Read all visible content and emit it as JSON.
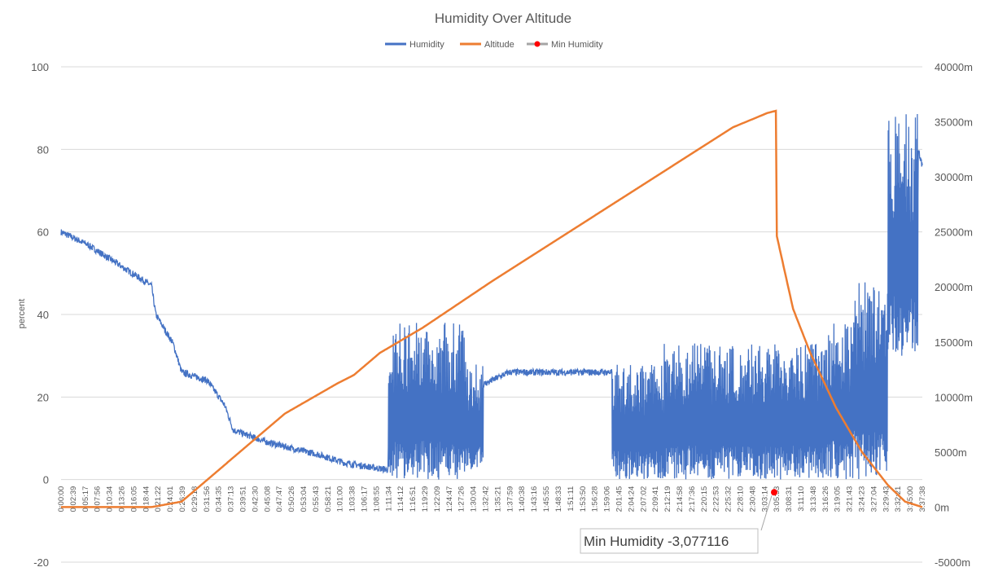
{
  "chart_data": {
    "type": "line",
    "title": "Humidity Over Altitude",
    "ylabel": "percent",
    "y_left_range": [
      -20,
      100
    ],
    "y_left_ticks": [
      "-20",
      "0",
      "20",
      "40",
      "60",
      "80",
      "100"
    ],
    "y_right_range": [
      -5000,
      40000
    ],
    "y_right_ticks": [
      "-5000m",
      "0m",
      "5000m",
      "10000m",
      "15000m",
      "20000m",
      "25000m",
      "30000m",
      "35000m",
      "40000m"
    ],
    "x_tick_labels": [
      "0:00:00",
      "0:02:39",
      "0:05:17",
      "0:07:56",
      "0:10:34",
      "0:13:26",
      "0:16:05",
      "0:18:44",
      "0:21:22",
      "0:24:01",
      "0:26:39",
      "0:29:18",
      "0:31:56",
      "0:34:35",
      "0:37:13",
      "0:39:51",
      "0:42:30",
      "0:45:08",
      "0:47:47",
      "0:50:26",
      "0:53:04",
      "0:55:43",
      "0:58:21",
      "1:01:00",
      "1:03:38",
      "1:06:17",
      "1:08:55",
      "1:11:34",
      "1:14:12",
      "1:16:51",
      "1:19:29",
      "1:22:09",
      "1:24:47",
      "1:27:26",
      "1:30:04",
      "1:32:42",
      "1:35:21",
      "1:37:59",
      "1:40:38",
      "1:43:16",
      "1:45:55",
      "1:48:33",
      "1:51:11",
      "1:53:50",
      "1:56:28",
      "1:59:06",
      "2:01:45",
      "2:04:24",
      "2:07:02",
      "2:09:41",
      "2:12:19",
      "2:14:58",
      "2:17:36",
      "2:20:15",
      "2:22:53",
      "2:25:32",
      "2:28:10",
      "2:30:48",
      "3:03:14",
      "3:05:53",
      "3:08:31",
      "3:11:10",
      "3:13:48",
      "3:16:26",
      "3:19:05",
      "3:21:43",
      "3:24:23",
      "3:27:04",
      "3:29:43",
      "3:32:21",
      "3:35:00",
      "3:37:38"
    ],
    "grid": true,
    "legend_position": "top",
    "series": [
      {
        "name": "Humidity",
        "axis": "left",
        "color": "#4472C4"
      },
      {
        "name": "Altitude",
        "axis": "right",
        "color": "#ED7D31"
      },
      {
        "name": "Min Humidity",
        "axis": "left",
        "color": "#FF0000",
        "marker": true
      }
    ],
    "altitude_profile": [
      [
        0,
        0
      ],
      [
        0.105,
        0
      ],
      [
        0.14,
        500
      ],
      [
        0.2,
        4500
      ],
      [
        0.26,
        8500
      ],
      [
        0.32,
        11200
      ],
      [
        0.34,
        12000
      ],
      [
        0.37,
        14000
      ],
      [
        0.42,
        16300
      ],
      [
        0.5,
        20500
      ],
      [
        0.6,
        25500
      ],
      [
        0.7,
        30500
      ],
      [
        0.78,
        34500
      ],
      [
        0.82,
        35800
      ],
      [
        0.83,
        36000
      ],
      [
        0.83,
        25000
      ],
      [
        0.85,
        18000
      ],
      [
        0.87,
        14000
      ],
      [
        0.9,
        9000
      ],
      [
        0.93,
        5000
      ],
      [
        0.96,
        2000
      ],
      [
        0.98,
        500
      ],
      [
        1,
        0
      ]
    ],
    "humidity_baseline": [
      [
        0,
        60
      ],
      [
        0.03,
        57
      ],
      [
        0.06,
        53
      ],
      [
        0.09,
        49
      ],
      [
        0.105,
        47
      ],
      [
        0.11,
        40
      ],
      [
        0.13,
        33
      ],
      [
        0.14,
        26
      ],
      [
        0.17,
        24
      ],
      [
        0.19,
        18
      ],
      [
        0.2,
        12
      ],
      [
        0.24,
        9
      ],
      [
        0.3,
        6
      ],
      [
        0.33,
        4
      ],
      [
        0.36,
        3
      ],
      [
        0.43,
        0.8
      ],
      [
        0.44,
        4
      ],
      [
        0.45,
        12
      ],
      [
        0.46,
        18
      ],
      [
        0.48,
        22
      ],
      [
        0.52,
        26
      ],
      [
        0.6,
        26
      ],
      [
        0.66,
        26
      ],
      [
        0.68,
        22
      ],
      [
        0.7,
        10
      ],
      [
        0.76,
        2
      ],
      [
        0.8,
        1
      ],
      [
        0.86,
        3
      ],
      [
        0.89,
        10
      ],
      [
        0.9,
        25
      ],
      [
        0.92,
        25
      ],
      [
        0.94,
        27
      ],
      [
        0.96,
        28
      ],
      [
        0.97,
        60
      ],
      [
        0.985,
        88
      ],
      [
        1,
        76
      ]
    ],
    "humidity_band_ranges": [
      [
        0.38,
        0.47,
        0,
        38
      ],
      [
        0.47,
        0.49,
        2,
        28
      ],
      [
        0.64,
        0.7,
        0,
        28
      ],
      [
        0.7,
        0.89,
        0,
        33
      ],
      [
        0.89,
        0.92,
        0,
        38
      ],
      [
        0.92,
        0.96,
        0,
        48
      ],
      [
        0.96,
        0.995,
        30,
        89
      ]
    ],
    "min_humidity": {
      "value": -3.077116,
      "label": "Min Humidity -3,077116"
    }
  }
}
